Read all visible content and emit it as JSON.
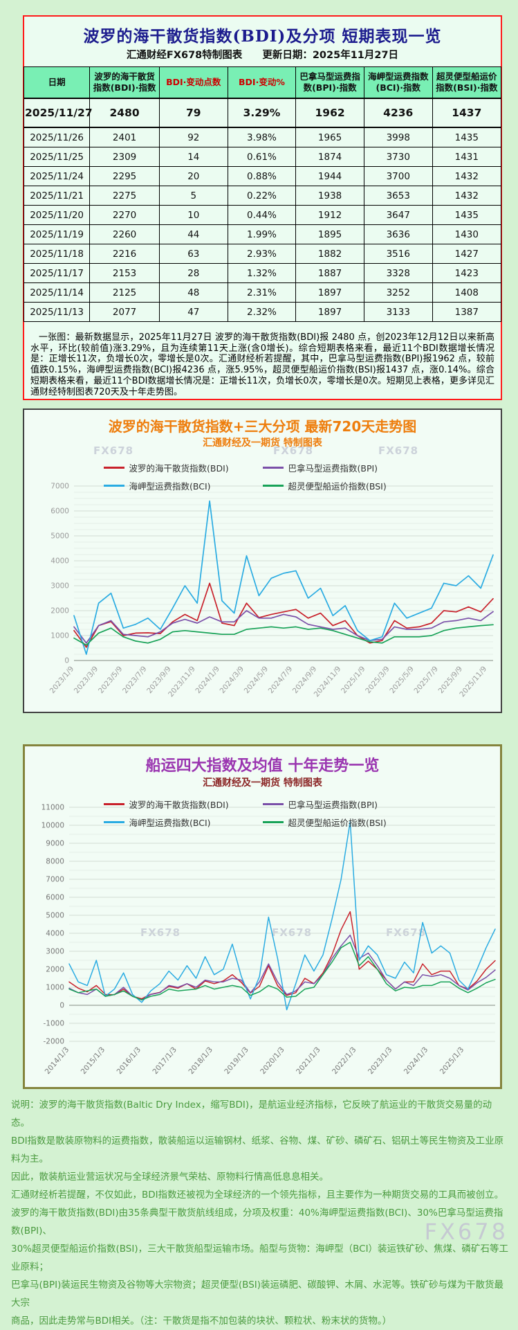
{
  "page": {
    "watermark": "FX678"
  },
  "panel1": {
    "title": "波罗的海干散货指数(BDI)及分项 短期表现一览",
    "source": "汇通财经FX678特制图表",
    "update_date": "更新日期：2025年11月27日",
    "table": {
      "accent_color": "#cc0000",
      "headers": [
        {
          "label": "日期",
          "accent": false
        },
        {
          "label": "波罗的海干散货\n指数(BDI)·指数",
          "accent": false
        },
        {
          "label": "BDI·变动点数",
          "accent": true
        },
        {
          "label": "BDI·变动%",
          "accent": true
        },
        {
          "label": "巴拿马型运费指\n数(BPI)·指数",
          "accent": false
        },
        {
          "label": "海岬型运费指数\n(BCI)·指数",
          "accent": false
        },
        {
          "label": "超灵便型船运价\n指数(BSI)·指数",
          "accent": false
        }
      ],
      "rows": [
        [
          "2025/11/27",
          "2480",
          "79",
          "3.29%",
          "1962",
          "4236",
          "1437"
        ],
        [
          "2025/11/26",
          "2401",
          "92",
          "3.98%",
          "1965",
          "3998",
          "1435"
        ],
        [
          "2025/11/25",
          "2309",
          "14",
          "0.61%",
          "1874",
          "3730",
          "1431"
        ],
        [
          "2025/11/24",
          "2295",
          "20",
          "0.88%",
          "1944",
          "3700",
          "1432"
        ],
        [
          "2025/11/21",
          "2275",
          "5",
          "0.22%",
          "1938",
          "3653",
          "1432"
        ],
        [
          "2025/11/20",
          "2270",
          "10",
          "0.44%",
          "1912",
          "3647",
          "1435"
        ],
        [
          "2025/11/19",
          "2260",
          "44",
          "1.99%",
          "1895",
          "3636",
          "1430"
        ],
        [
          "2025/11/18",
          "2216",
          "63",
          "2.93%",
          "1882",
          "3516",
          "1427"
        ],
        [
          "2025/11/17",
          "2153",
          "28",
          "1.32%",
          "1887",
          "3328",
          "1423"
        ],
        [
          "2025/11/14",
          "2125",
          "48",
          "2.31%",
          "1897",
          "3252",
          "1408"
        ],
        [
          "2025/11/13",
          "2077",
          "47",
          "2.32%",
          "1897",
          "3133",
          "1387"
        ]
      ]
    },
    "summary": "一张图：最新数据显示，2025年11月27日 波罗的海干散货指数(BDI)报 2480 点，创2023年12月12日以来新高水平，环比(较前值)涨3.29%，且为连续第11天上涨(含0增长)。综合短期表格来看，最近11个BDI数据增长情况是：正增长11次，负增长0次，零增长是0次。汇通财经析若提醒，其中，巴拿马型运费指数(BPI)报1962 点，较前值跌0.15%，海岬型运费指数(BCI)报4236 点，涨5.95%，超灵便型船运价指数(BSI)报1437 点，涨0.14%。综合短期表格来看，最近11个BDI数据增长情况是：正增长11次，负增长0次，零增长是0次。短期见上表格，更多详见汇通财经特制图表720天及十年走势图。"
  },
  "chart_data": [
    {
      "id": "chart1",
      "type": "line",
      "title": "波罗的海干散货指数+三大分项  最新720天走势图",
      "subtitle": "汇通财经及一期货 特制图表",
      "grid": true,
      "legend_position": "top",
      "ylim": [
        0,
        7000
      ],
      "y_tick_step": 1000,
      "y_minor_step": 250,
      "x_labels": [
        "2023/1/9",
        "2023/3/9",
        "2023/5/9",
        "2023/7/9",
        "2023/9/9",
        "2023/11/9",
        "2024/1/9",
        "2024/3/9",
        "2024/5/9",
        "2024/7/9",
        "2024/9/9",
        "2024/11/9",
        "2025/1/9",
        "2025/3/9",
        "2025/5/9",
        "2025/7/9",
        "2025/9/9",
        "2025/11/9"
      ],
      "x_sampling": "monthly samples 2023/01 - 2025/11 (values estimated from chart)",
      "series": [
        {
          "name": "波罗的海干散货指数(BDI)",
          "color": "#c8202a",
          "values": [
            1200,
            530,
            1400,
            1560,
            1000,
            1100,
            1110,
            1080,
            1550,
            1850,
            1600,
            3100,
            1500,
            1400,
            2300,
            1720,
            1850,
            1950,
            2050,
            1700,
            1900,
            1400,
            1600,
            1000,
            700,
            800,
            1600,
            1300,
            1350,
            1500,
            2000,
            1950,
            2150,
            1950,
            2480
          ]
        },
        {
          "name": "巴拿马型运费指数(BPI)",
          "color": "#7a4fa8",
          "values": [
            1350,
            700,
            1400,
            1600,
            1050,
            1000,
            950,
            1150,
            1500,
            1650,
            1500,
            1750,
            1550,
            1550,
            2000,
            1700,
            1700,
            1850,
            1750,
            1450,
            1350,
            1250,
            1300,
            1000,
            800,
            850,
            1350,
            1250,
            1250,
            1300,
            1550,
            1600,
            1700,
            1600,
            1962
          ]
        },
        {
          "name": "海岬型运费指数(BCI)",
          "color": "#29abe2",
          "values": [
            1800,
            250,
            2300,
            2700,
            1300,
            1450,
            1700,
            1250,
            2100,
            3000,
            2300,
            6400,
            2400,
            1900,
            4200,
            2600,
            3300,
            3500,
            3600,
            2500,
            2900,
            1800,
            2200,
            1200,
            800,
            950,
            2300,
            1700,
            1900,
            2100,
            3100,
            3000,
            3400,
            2900,
            4236
          ]
        },
        {
          "name": "超灵便型船运价指数(BSI)",
          "color": "#17a257",
          "values": [
            900,
            620,
            1100,
            1300,
            950,
            780,
            700,
            850,
            1150,
            1200,
            1150,
            1100,
            1050,
            1050,
            1250,
            1300,
            1350,
            1300,
            1350,
            1250,
            1300,
            1200,
            1050,
            900,
            750,
            700,
            950,
            950,
            950,
            1000,
            1200,
            1300,
            1350,
            1400,
            1437
          ]
        }
      ]
    },
    {
      "id": "chart2",
      "type": "line",
      "title": "船运四大指数及均值 十年走势一览",
      "subtitle": "汇通财经及一期货 特制图表",
      "grid": true,
      "legend_position": "top",
      "ylim": [
        -2000,
        11000
      ],
      "y_tick_step": 1000,
      "y_minor_step": 500,
      "x_labels": [
        "2014/1/3",
        "2015/1/3",
        "2016/1/3",
        "2017/1/3",
        "2018/1/3",
        "2019/1/3",
        "2020/1/3",
        "2021/1/3",
        "2022/1/3",
        "2023/1/3",
        "2024/1/3",
        "2025/1/3"
      ],
      "x_sampling": "quarterly samples 2014 - 2025/11 (values estimated from chart)",
      "series": [
        {
          "name": "波罗的海干散货指数(BDI)",
          "color": "#c8202a",
          "values": [
            1300,
            950,
            750,
            1100,
            600,
            590,
            900,
            500,
            360,
            610,
            720,
            1050,
            950,
            1200,
            900,
            1350,
            1200,
            1350,
            1700,
            1270,
            680,
            1050,
            2200,
            1090,
            550,
            700,
            1500,
            1200,
            1800,
            2800,
            4200,
            5200,
            2000,
            2450,
            2000,
            1400,
            900,
            1300,
            1300,
            2300,
            1700,
            1900,
            1900,
            1100,
            900,
            1350,
            2000,
            2480
          ]
        },
        {
          "name": "巴拿马型运费指数(BPI)",
          "color": "#7a4fa8",
          "values": [
            950,
            700,
            600,
            900,
            500,
            600,
            1000,
            500,
            300,
            600,
            700,
            1100,
            1000,
            1200,
            1000,
            1400,
            1300,
            1300,
            1500,
            1400,
            700,
            1300,
            2300,
            1300,
            600,
            800,
            1300,
            1200,
            1700,
            2600,
            3300,
            3900,
            2600,
            2900,
            2200,
            1400,
            900,
            1300,
            1100,
            1700,
            1600,
            1700,
            1500,
            1100,
            850,
            1250,
            1550,
            1962
          ]
        },
        {
          "name": "海岬型运费指数(BCI)",
          "color": "#29abe2",
          "values": [
            2300,
            1300,
            1100,
            2500,
            500,
            900,
            1800,
            600,
            160,
            800,
            1200,
            1900,
            1400,
            2200,
            1500,
            2700,
            1700,
            2000,
            3400,
            1600,
            350,
            1600,
            4900,
            2600,
            -250,
            1200,
            2800,
            1900,
            2800,
            4800,
            7000,
            10200,
            2500,
            3300,
            2800,
            1700,
            1500,
            2400,
            1800,
            4600,
            2900,
            3300,
            2900,
            1400,
            900,
            2000,
            3200,
            4236
          ]
        },
        {
          "name": "超灵便型船运价指数(BSI)",
          "color": "#17a257",
          "values": [
            900,
            700,
            800,
            900,
            500,
            600,
            800,
            500,
            300,
            500,
            600,
            900,
            800,
            850,
            900,
            1100,
            900,
            1000,
            1100,
            1000,
            550,
            750,
            1100,
            900,
            450,
            500,
            900,
            1000,
            1700,
            2400,
            3200,
            3500,
            2200,
            2700,
            2000,
            1200,
            800,
            1000,
            950,
            1100,
            1100,
            1300,
            1300,
            950,
            700,
            950,
            1250,
            1437
          ]
        }
      ]
    }
  ],
  "footer": {
    "watermark": "FX678",
    "lines": [
      "说明：波罗的海干散货指数(Baltic Dry Index，缩写BDI)，是航运业经济指标，它反映了航运业的干散货交易量的动态。",
      "BDI指数是散装原物料的运费指数，散装船运以运输钢材、纸浆、谷物、煤、矿砂、磷矿石、铝矾土等民生物资及工业原料为主。",
      "因此，散装航运业营运状况与全球经济景气荣枯、原物料行情高低息息相关。",
      "汇通财经析若提醒，不仅如此，BDI指数还被视为全球经济的一个领先指标，且主要作为一种期货交易的工具而被创立。",
      "波罗的海干散货指数(BDI)由35条典型干散货航线组成，分项及权重：40%海岬型运费指数(BCI)、30%巴拿马型运费指数(BPI)、",
      "30%超灵便型船运价指数(BSI)，三大干散货船型运输市场。船型与货物：海岬型（BCI）装运铁矿砂、焦煤、磷矿石等工业原料；",
      "巴拿马(BPI)装运民生物资及谷物等大宗物资；超灵便型(BSI)装运磷肥、碳酸钾、木屑、水泥等。铁矿砂与煤为干散货最大宗",
      "商品，因此走势常与BDI相关。（注：干散货是指不加包装的块状、颗粒状、粉末状的货物。）"
    ]
  }
}
